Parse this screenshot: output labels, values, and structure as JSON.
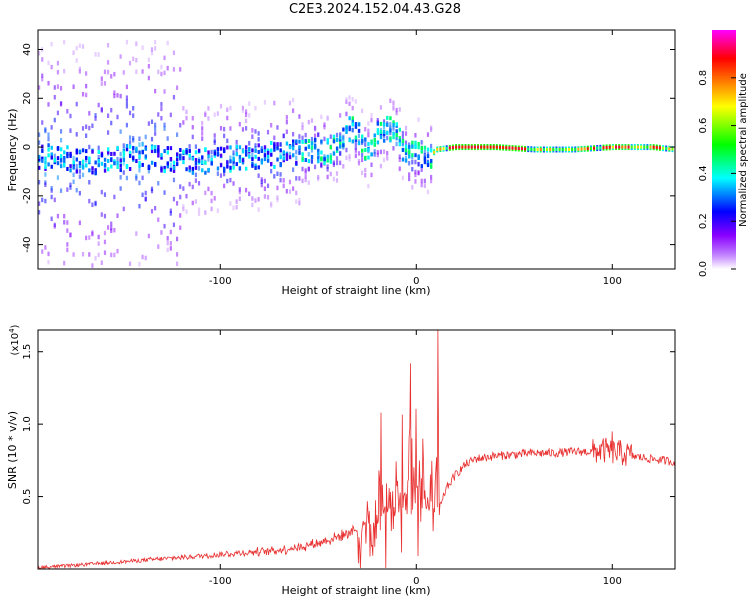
{
  "title": "C2E3.2024.152.04.43.G28",
  "chart_data": [
    {
      "type": "heatmap",
      "xlabel": "Height of straight line (km)",
      "ylabel": "Frequency (Hz)",
      "xlim": [
        -193,
        132
      ],
      "ylim": [
        -50,
        48
      ],
      "xticks": [
        -100,
        0,
        100
      ],
      "yticks": [
        -40,
        -20,
        0,
        20,
        40
      ],
      "colorbar": {
        "label": "Normalized spectral amplitude",
        "range": [
          0,
          1
        ],
        "ticks": [
          0.0,
          0.2,
          0.4,
          0.6,
          0.8
        ],
        "colormap": [
          "#ffffff",
          "#8a00ff",
          "#0000ff",
          "#00ffff",
          "#00ff00",
          "#ffff00",
          "#ff8000",
          "#ff0000",
          "#ff00ff"
        ]
      },
      "ridge": {
        "x": [
          -190,
          -175,
          -160,
          -145,
          -130,
          -115,
          -100,
          -85,
          -70,
          -60,
          -50,
          -45,
          -40,
          -35,
          -30,
          -25,
          -20,
          -15,
          -10,
          -5,
          0,
          5,
          10,
          20,
          40,
          60,
          80,
          100,
          120,
          132
        ],
        "y": [
          -4,
          -5,
          -6,
          -4,
          -5,
          -6,
          -5,
          -4,
          -3,
          -2,
          -1,
          -2,
          1,
          8,
          5,
          -3,
          5,
          8,
          4,
          -4,
          -2,
          -5,
          -1,
          0,
          0,
          -1,
          -1,
          0,
          0,
          -1
        ]
      },
      "grid": false
    },
    {
      "type": "line",
      "xlabel": "Height of straight line (km)",
      "ylabel": "SNR (10 * v/v)",
      "y_multiplier": "(x10",
      "y_multiplier_exp": "4",
      "y_multiplier_close": ")",
      "xlim": [
        -193,
        132
      ],
      "ylim": [
        0,
        1.65
      ],
      "xticks": [
        -100,
        0,
        100
      ],
      "yticks": [
        0.5,
        1.0,
        1.5
      ],
      "color": "#e83030",
      "series": [
        {
          "x": [
            -193,
            -180,
            -160,
            -140,
            -120,
            -100,
            -90,
            -80,
            -70,
            -60,
            -50,
            -40,
            -30,
            -25,
            -20,
            -15,
            -10,
            -5,
            0,
            5,
            10,
            13,
            15,
            20,
            25,
            30,
            40,
            50,
            60,
            70,
            80,
            90,
            95,
            100,
            105,
            110,
            120,
            132
          ],
          "values": [
            0.01,
            0.02,
            0.04,
            0.06,
            0.08,
            0.1,
            0.11,
            0.12,
            0.13,
            0.15,
            0.18,
            0.22,
            0.28,
            0.33,
            0.38,
            0.42,
            0.45,
            0.48,
            0.5,
            0.42,
            0.4,
            0.45,
            0.55,
            0.65,
            0.72,
            0.76,
            0.78,
            0.79,
            0.8,
            0.8,
            0.81,
            0.81,
            0.82,
            0.81,
            0.8,
            0.78,
            0.76,
            0.74
          ]
        }
      ],
      "peaks": [
        {
          "x": 11,
          "y": 1.65
        },
        {
          "x": -3,
          "y": 1.42
        },
        {
          "x": -18,
          "y": 1.08
        },
        {
          "x": 100,
          "y": 0.95
        }
      ],
      "grid": false
    }
  ]
}
